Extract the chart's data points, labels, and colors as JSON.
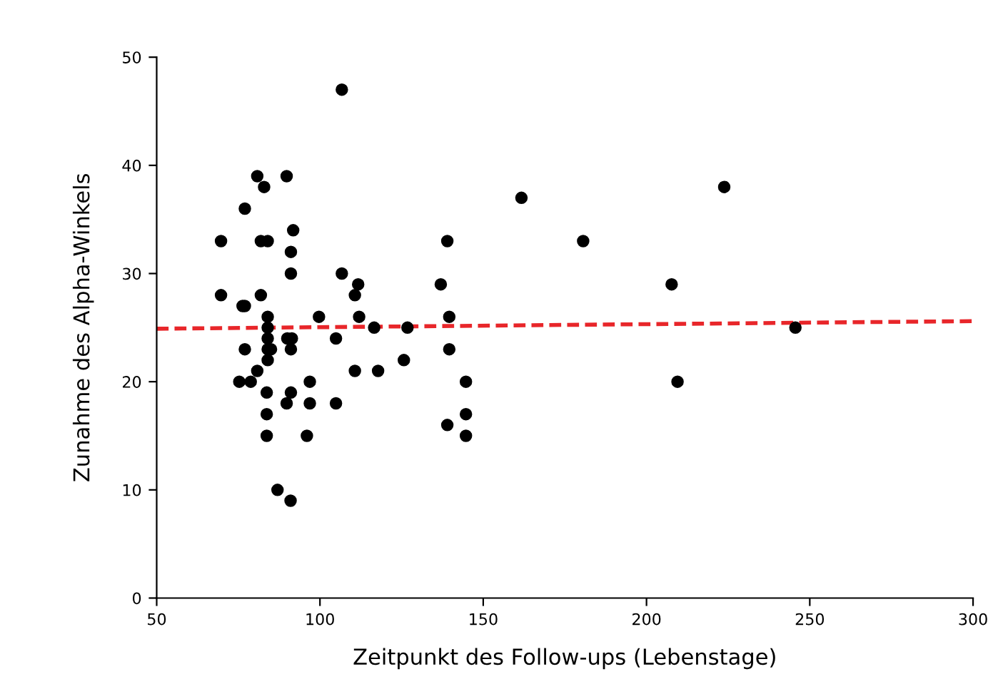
{
  "chart_data": {
    "type": "scatter",
    "xlabel": "Zeitpunkt des Follow-ups (Lebenstage)",
    "ylabel": "Zunahme des Alpha-Winkels",
    "xlim": [
      50,
      300
    ],
    "ylim": [
      0,
      50
    ],
    "xticks": [
      50,
      100,
      150,
      200,
      250,
      300
    ],
    "yticks": [
      0,
      10,
      20,
      30,
      40,
      50
    ],
    "grid": false,
    "legend": false,
    "marker": "circle",
    "series": [
      {
        "color": "#000000",
        "x": [
          106.7,
          80.8,
          82.9,
          89.8,
          77,
          69.7,
          81.9,
          84,
          91.8,
          91.1,
          91.1,
          69.7,
          76.3,
          77,
          81.9,
          84,
          84,
          84,
          84,
          84,
          85,
          77,
          80.8,
          75.3,
          78.8,
          83.7,
          83.7,
          83.7,
          90,
          91.4,
          91.1,
          91.1,
          89.8,
          96.9,
          96.9,
          96,
          87,
          91,
          99.7,
          104.9,
          104.9,
          106.7,
          111.7,
          110.7,
          112,
          110.7,
          116.6,
          117.8,
          126.8,
          125.7,
          137,
          139,
          139.6,
          139.6,
          139,
          144.7,
          144.7,
          144.7,
          161.7,
          180.6,
          207.7,
          209.5,
          223.8,
          245.6
        ],
        "values": [
          47,
          39,
          38,
          39,
          36,
          33,
          33,
          33,
          34,
          32,
          30,
          28,
          27,
          27,
          28,
          26,
          25,
          24,
          23,
          22,
          23,
          23,
          21,
          20,
          20,
          19,
          17,
          15,
          24,
          24,
          23,
          19,
          18,
          20,
          18,
          15,
          10,
          9,
          26,
          24,
          18,
          30,
          29,
          28,
          26,
          21,
          25,
          21,
          25,
          22,
          29,
          33,
          26,
          23,
          16,
          20,
          17,
          15,
          37,
          33,
          29,
          20,
          38,
          25
        ]
      },
      {
        "type": "line",
        "color": "#e8262a",
        "line_style": "dashed",
        "marker": "none",
        "x": [
          50,
          300
        ],
        "values": [
          24.9,
          25.6
        ]
      }
    ]
  }
}
